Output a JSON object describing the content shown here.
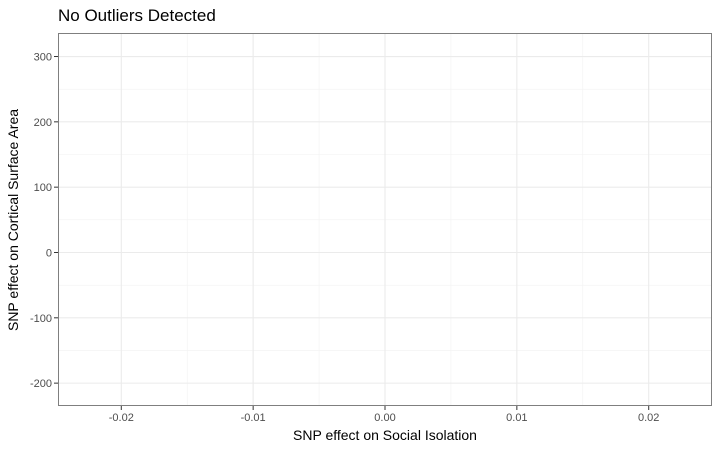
{
  "chart_data": {
    "type": "scatter",
    "title": "No Outliers Detected",
    "xlabel": "SNP effect on Social Isolation",
    "ylabel": "SNP effect on Cortical Surface Area",
    "xlim": [
      -0.0248,
      0.0248
    ],
    "ylim": [
      -235,
      336
    ],
    "x_ticks": [
      -0.02,
      -0.01,
      0.0,
      0.01,
      0.02
    ],
    "x_tick_labels": [
      "-0.02",
      "-0.01",
      "0.00",
      "0.01",
      "0.02"
    ],
    "y_ticks": [
      -200,
      -100,
      0,
      100,
      200,
      300
    ],
    "y_tick_labels": [
      "-200",
      "-100",
      "0",
      "100",
      "200",
      "300"
    ],
    "grid": true,
    "series": [
      {
        "points": []
      }
    ]
  }
}
